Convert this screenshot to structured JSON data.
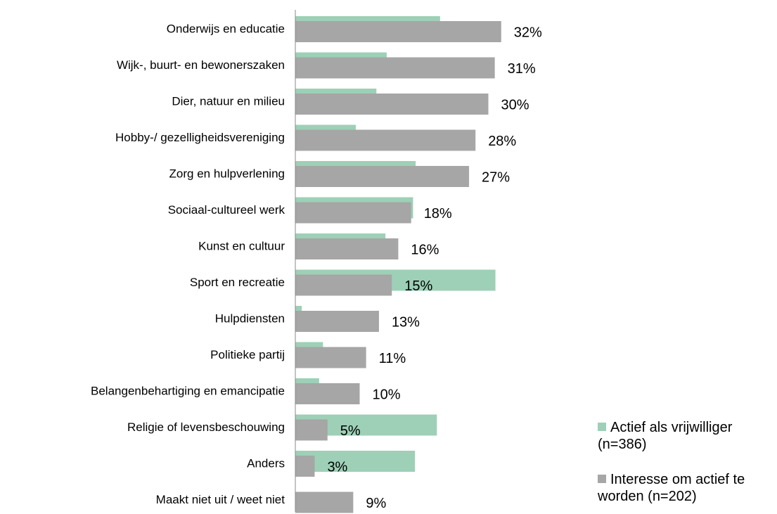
{
  "chart_data": {
    "type": "hbar",
    "categories": [
      "Onderwijs en educatie",
      "Wijk-, buurt- en bewonerszaken",
      "Dier, natuur en milieu",
      "Hobby-/ gezelligheidsvereniging",
      "Zorg en hulpverlening ",
      "Sociaal-cultureel werk",
      "Kunst en cultuur",
      "Sport en recreatie",
      "Hulpdiensten",
      "Politieke partij",
      "Belangenbehartiging en emancipatie",
      "Religie of levensbeschouwing",
      "Anders",
      "Maakt niet uit / weet niet"
    ],
    "xlim": [
      0,
      35
    ],
    "series": [
      {
        "name": "Actief als vrijwilliger (n=386)",
        "color": "#9dd0b7",
        "values": [
          22.5,
          14.2,
          12.6,
          9.4,
          18.7,
          18.3,
          14,
          31.1,
          1,
          4.3,
          3.7,
          22,
          18.6,
          0
        ]
      },
      {
        "name": "Interesse om actief te worden (n=202)",
        "color": "#a6a6a6",
        "values": [
          32,
          31,
          30,
          28,
          27,
          18,
          16,
          15,
          13,
          11,
          10,
          5,
          3,
          9
        ],
        "value_labels": [
          "32%",
          "31%",
          "30%",
          "28%",
          "27%",
          "18%",
          "16%",
          "15%",
          "13%",
          "11%",
          "10%",
          "5%",
          "3%",
          "9%"
        ]
      }
    ]
  }
}
